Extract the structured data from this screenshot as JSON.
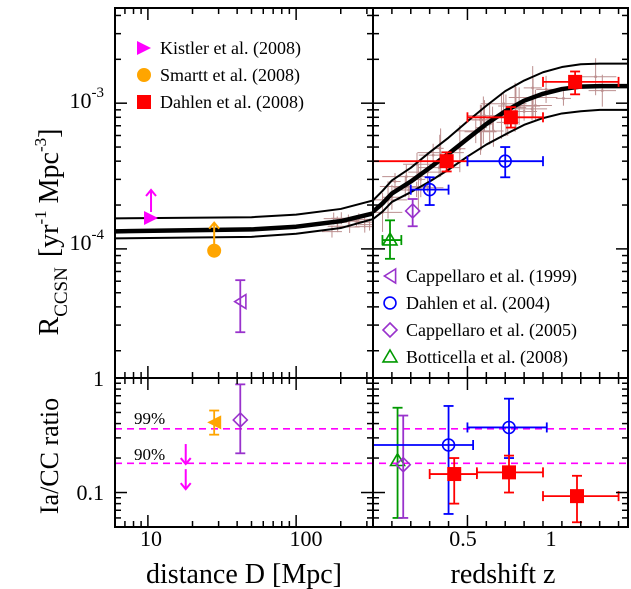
{
  "chart_data": {
    "type": "scatter",
    "panels": {
      "top_left": {
        "xscale": "log",
        "xlim": [
          6,
          330
        ],
        "yscale": "log",
        "ylim": [
          1.3e-05,
          0.0045
        ],
        "series": [
          {
            "name": "Kistler et al. (2008)",
            "marker": "triangle-right",
            "color": "#ff00ff",
            "points": [
              {
                "x": 10.5,
                "y": 0.000163
              }
            ],
            "arrow": "up"
          },
          {
            "name": "Smartt et al. (2008)",
            "marker": "circle-filled",
            "color": "#ffa500",
            "points": [
              {
                "x": 28,
                "y": 9.72e-05
              }
            ],
            "arrow": "up"
          },
          {
            "name": "Cappellaro et al. (1999)",
            "marker": "triangle-left-open",
            "color": "#9932cc",
            "points": [
              {
                "x": 42,
                "y": 4.35e-05,
                "ylow": 2.68e-05,
                "yhigh": 6.1e-05
              }
            ]
          }
        ],
        "model_band": {
          "x": [
            6,
            50,
            100,
            200,
            330
          ],
          "central": [
            0.000132,
            0.000136,
            0.000142,
            0.000155,
            0.000175
          ],
          "upper": [
            0.000162,
            0.000165,
            0.000172,
            0.000188,
            0.000215
          ],
          "lower": [
            0.000118,
            0.000121,
            0.000127,
            0.000139,
            0.00016
          ]
        }
      },
      "top_right": {
        "xlim": [
          0,
          1.35
        ],
        "yscale": "log",
        "ylim": [
          1.3e-05,
          0.0045
        ],
        "series": [
          {
            "name": "Dahlen et al. (2008)",
            "marker": "square-filled",
            "color": "#ff0000",
            "points": [
              {
                "x": 0.39,
                "y": 0.0004,
                "xlow": 0.0,
                "xhigh": 0.5,
                "ylow": 0.00034,
                "yhigh": 0.00046
              },
              {
                "x": 0.73,
                "y": 0.0008,
                "xlow": 0.5,
                "xhigh": 0.9,
                "ylow": 0.00068,
                "yhigh": 0.00094
              },
              {
                "x": 1.07,
                "y": 0.0014,
                "xlow": 0.9,
                "xhigh": 1.3,
                "ylow": 0.00115,
                "yhigh": 0.00165
              }
            ]
          },
          {
            "name": "Dahlen et al. (2004)",
            "marker": "circle-open",
            "color": "#0000ff",
            "points": [
              {
                "x": 0.3,
                "y": 0.000255,
                "xlow": 0.2,
                "xhigh": 0.4,
                "ylow": 0.0002,
                "yhigh": 0.00031
              },
              {
                "x": 0.7,
                "y": 0.0004,
                "xlow": 0.5,
                "xhigh": 0.9,
                "ylow": 0.00031,
                "yhigh": 0.0005
              }
            ]
          },
          {
            "name": "Cappellaro et al. (2005)",
            "marker": "diamond-open",
            "color": "#9932cc",
            "points": [
              {
                "x": 0.21,
                "y": 0.000182,
                "ylow": 0.000143,
                "yhigh": 0.00022
              }
            ]
          },
          {
            "name": "Botticella et al. (2008)",
            "marker": "triangle-up-open",
            "color": "#009900",
            "points": [
              {
                "x": 0.09,
                "y": 0.000115,
                "xlow": 0.05,
                "xhigh": 0.15,
                "ylow": 8.55e-05,
                "yhigh": 0.000157
              }
            ]
          }
        ],
        "model_band": {
          "x": [
            0,
            0.05,
            0.1,
            0.2,
            0.3,
            0.4,
            0.5,
            0.6,
            0.7,
            0.8,
            0.9,
            1.0,
            1.1,
            1.2,
            1.35
          ],
          "central": [
            0.00018,
            0.000205,
            0.00024,
            0.00029,
            0.00036,
            0.00045,
            0.00057,
            0.00072,
            0.00088,
            0.00104,
            0.00116,
            0.00125,
            0.0013,
            0.00131,
            0.00131
          ],
          "upper": [
            0.000215,
            0.00025,
            0.000295,
            0.00036,
            0.00046,
            0.00058,
            0.00075,
            0.00096,
            0.00121,
            0.00143,
            0.00163,
            0.00177,
            0.00185,
            0.00187,
            0.00187
          ],
          "lower": [
            0.00016,
            0.00018,
            0.00021,
            0.000245,
            0.00029,
            0.00035,
            0.00043,
            0.00052,
            0.00061,
            0.00071,
            0.00079,
            0.00085,
            0.00088,
            0.0009,
            0.0009
          ]
        }
      },
      "bottom_left": {
        "xscale": "log",
        "xlim": [
          6,
          330
        ],
        "yscale": "log",
        "ylim": [
          0.05,
          1.0
        ],
        "series": [
          {
            "name": "Smartt et al. (2008)",
            "marker": "triangle-left-filled",
            "color": "#ffa500",
            "points": [
              {
                "x": 28,
                "y": 0.41,
                "ylow": 0.32,
                "yhigh": 0.52
              }
            ]
          },
          {
            "name": "Cappellaro et al. (1999)",
            "marker": "diamond-open",
            "color": "#9932cc",
            "points": [
              {
                "x": 42,
                "y": 0.43,
                "ylow": 0.22,
                "yhigh": 0.88
              }
            ]
          }
        ],
        "upper_limits": [
          {
            "x": 18,
            "y": 0.265,
            "color": "#ff00ff"
          },
          {
            "x": 18,
            "y": 0.16,
            "color": "#ff00ff"
          }
        ]
      },
      "bottom_right": {
        "xlim": [
          0,
          1.35
        ],
        "yscale": "log",
        "ylim": [
          0.05,
          1.0
        ],
        "series": [
          {
            "name": "Botticella et al. (2008)",
            "marker": "triangle-up-open",
            "color": "#009900",
            "points": [
              {
                "x": 0.13,
                "y": 0.19,
                "ylow": 0.06,
                "yhigh": 0.55
              }
            ]
          },
          {
            "name": "Cappellaro et al. (2005)",
            "marker": "diamond-open",
            "color": "#9932cc",
            "points": [
              {
                "x": 0.16,
                "y": 0.175,
                "ylow": 0.06,
                "yhigh": 0.47
              }
            ]
          },
          {
            "name": "Dahlen et al. (2004)",
            "marker": "circle-open",
            "color": "#0000ff",
            "points": [
              {
                "x": 0.4,
                "y": 0.26,
                "xlow": 0.0,
                "xhigh": 0.53,
                "ylow": 0.065,
                "yhigh": 0.57
              },
              {
                "x": 0.72,
                "y": 0.37,
                "xlow": 0.5,
                "xhigh": 0.92,
                "ylow": 0.2,
                "yhigh": 0.66
              }
            ]
          },
          {
            "name": "Dahlen et al. (2008)",
            "marker": "square-filled",
            "color": "#ff0000",
            "points": [
              {
                "x": 0.43,
                "y": 0.145,
                "xlow": 0.3,
                "xhigh": 0.55,
                "ylow": 0.08,
                "yhigh": 0.2
              },
              {
                "x": 0.72,
                "y": 0.15,
                "xlow": 0.55,
                "xhigh": 0.9,
                "ylow": 0.1,
                "yhigh": 0.21
              },
              {
                "x": 1.08,
                "y": 0.093,
                "xlow": 0.9,
                "xhigh": 1.3,
                "ylow": 0.055,
                "yhigh": 0.14
              }
            ]
          }
        ],
        "dashed_lines": [
          {
            "y": 0.36,
            "color": "#ff00ff"
          },
          {
            "y": 0.18,
            "color": "#ff00ff"
          }
        ]
      }
    },
    "labels": {
      "ylabel_top_main": "R",
      "ylabel_top_sub": "CCSN",
      "ylabel_top_units": "[yr",
      "ylabel_top_exp1": "-1",
      "ylabel_top_mpc": " Mpc",
      "ylabel_top_exp2": "-3",
      "ylabel_top_close": "]",
      "ylabel_bottom": "Ia/CC ratio",
      "xlabel_left": "distance D [Mpc]",
      "xlabel_right": "redshift z",
      "pct99": "99%",
      "pct90": "90%",
      "tick_left_10": "10",
      "tick_left_100": "100",
      "tick_right_05": "0.5",
      "tick_right_1": "1",
      "ytick_top_base1": "10",
      "ytick_top_exp1": "-3",
      "ytick_top_base2": "10",
      "ytick_top_exp2": "-4",
      "ytick_bot_1": "1",
      "ytick_bot_01": "0.1"
    },
    "legend_upper_left": [
      {
        "label": "Kistler et al. (2008)",
        "marker": "triangle-right",
        "color": "#ff00ff"
      },
      {
        "label": "Smartt et al. (2008)",
        "marker": "circle-filled",
        "color": "#ffa500"
      },
      {
        "label": "Dahlen et al. (2008)",
        "marker": "square-filled",
        "color": "#ff0000"
      }
    ],
    "legend_lower_right": [
      {
        "label": "Cappellaro et al. (1999)",
        "marker": "triangle-left-open",
        "color": "#9932cc"
      },
      {
        "label": "Dahlen et al. (2004)",
        "marker": "circle-open",
        "color": "#0000ff"
      },
      {
        "label": "Cappellaro et al. (2005)",
        "marker": "diamond-open",
        "color": "#9932cc"
      },
      {
        "label": "Botticella et al. (2008)",
        "marker": "triangle-up-open",
        "color": "#009900"
      }
    ],
    "background_data_color": "#bc8f8f"
  }
}
